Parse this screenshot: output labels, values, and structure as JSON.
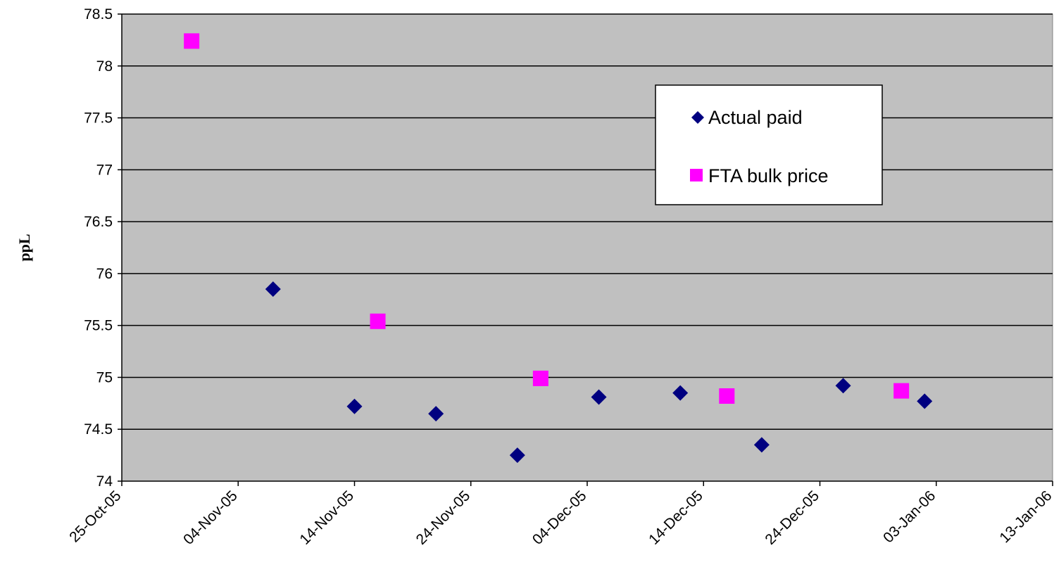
{
  "chart_data": {
    "type": "scatter",
    "title": "",
    "xlabel": "",
    "ylabel": "ppL",
    "xlim": [
      "2005-10-25",
      "2006-01-13"
    ],
    "ylim": [
      74,
      78.5
    ],
    "y_ticks": [
      "74",
      "74.5",
      "75",
      "75.5",
      "76",
      "76.5",
      "77",
      "77.5",
      "78",
      "78.5"
    ],
    "x_ticks": [
      {
        "date": "2005-10-25",
        "label": "25-Oct-05"
      },
      {
        "date": "2005-11-04",
        "label": "04-Nov-05"
      },
      {
        "date": "2005-11-14",
        "label": "14-Nov-05"
      },
      {
        "date": "2005-11-24",
        "label": "24-Nov-05"
      },
      {
        "date": "2005-12-04",
        "label": "04-Dec-05"
      },
      {
        "date": "2005-12-14",
        "label": "14-Dec-05"
      },
      {
        "date": "2005-12-24",
        "label": "24-Dec-05"
      },
      {
        "date": "2006-01-03",
        "label": "03-Jan-06"
      },
      {
        "date": "2006-01-13",
        "label": "13-Jan-06"
      }
    ],
    "grid": "horizontal",
    "plot_background": "#c0c0c0",
    "legend_position": "top-right",
    "series": [
      {
        "name": "Actual paid",
        "marker": "diamond",
        "color": "#000080",
        "points": [
          {
            "x": "2005-11-07",
            "y": 75.85
          },
          {
            "x": "2005-11-14",
            "y": 74.72
          },
          {
            "x": "2005-11-21",
            "y": 74.65
          },
          {
            "x": "2005-11-28",
            "y": 74.25
          },
          {
            "x": "2005-12-05",
            "y": 74.81
          },
          {
            "x": "2005-12-12",
            "y": 74.85
          },
          {
            "x": "2005-12-19",
            "y": 74.35
          },
          {
            "x": "2005-12-26",
            "y": 74.92
          },
          {
            "x": "2006-01-02",
            "y": 74.77
          }
        ]
      },
      {
        "name": "FTA bulk price",
        "marker": "square",
        "color": "#ff00ff",
        "points": [
          {
            "x": "2005-10-31",
            "y": 78.24
          },
          {
            "x": "2005-11-16",
            "y": 75.54
          },
          {
            "x": "2005-11-30",
            "y": 74.99
          },
          {
            "x": "2005-12-16",
            "y": 74.82
          },
          {
            "x": "2005-12-31",
            "y": 74.87
          }
        ]
      }
    ]
  }
}
